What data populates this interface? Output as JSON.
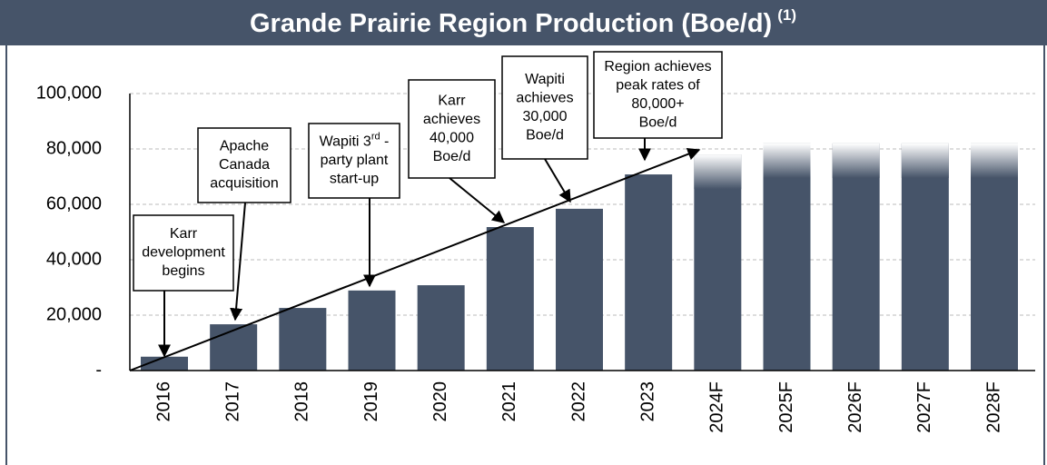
{
  "chart_data": {
    "type": "bar",
    "title": "Grande Prairie Region Production (Boe/d)",
    "title_note": "(1)",
    "categories": [
      "2016",
      "2017",
      "2018",
      "2019",
      "2020",
      "2021",
      "2022",
      "2023",
      "2024F",
      "2025F",
      "2026F",
      "2027F",
      "2028F"
    ],
    "values": [
      5000,
      16700,
      22600,
      28900,
      30800,
      51800,
      58400,
      70800,
      78000,
      82000,
      82000,
      82000,
      82000
    ],
    "color": "#465469",
    "ylim": [
      0,
      100000
    ],
    "yticks": [
      {
        "value": 0,
        "label": "-"
      },
      {
        "value": 20000,
        "label": "20,000"
      },
      {
        "value": 40000,
        "label": "40,000"
      },
      {
        "value": 60000,
        "label": "60,000"
      },
      {
        "value": 80000,
        "label": "80,000"
      },
      {
        "value": 100000,
        "label": "100,000"
      }
    ],
    "grid": true,
    "annotations": [
      {
        "lines": [
          "Karr",
          "development",
          "begins"
        ]
      },
      {
        "lines": [
          "Apache",
          "Canada",
          "acquisition"
        ]
      },
      {
        "lines": [
          [
            "Wapiti 3",
            "rd",
            " -"
          ],
          "party plant",
          "start-up"
        ]
      },
      {
        "lines": [
          "Karr",
          "achieves",
          "40,000",
          "Boe/d"
        ]
      },
      {
        "lines": [
          "Wapiti",
          "achieves",
          "30,000",
          "Boe/d"
        ]
      },
      {
        "lines": [
          "Region achieves",
          "peak rates of",
          "80,000+",
          "Boe/d"
        ]
      }
    ]
  }
}
